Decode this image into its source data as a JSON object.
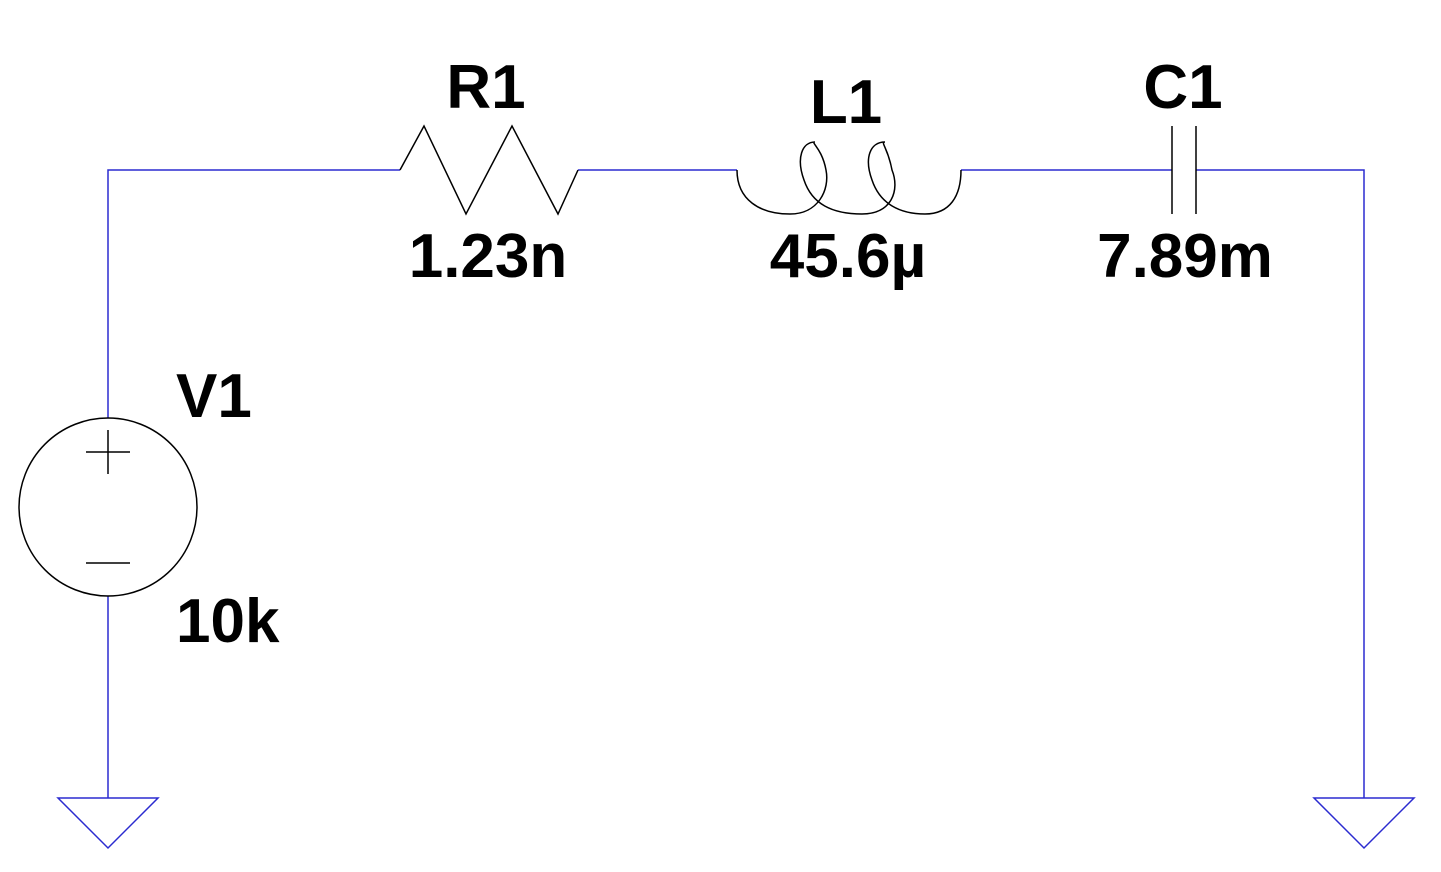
{
  "components": {
    "r1": {
      "ref": "R1",
      "value": "1.23n"
    },
    "l1": {
      "ref": "L1",
      "value": "45.6µ"
    },
    "c1": {
      "ref": "C1",
      "value": "7.89m"
    },
    "v1": {
      "ref": "V1",
      "value": "10k"
    }
  },
  "colors": {
    "wire": "#2b2bd0",
    "symbol": "#000000",
    "label": "#000000",
    "background": "#ffffff"
  }
}
